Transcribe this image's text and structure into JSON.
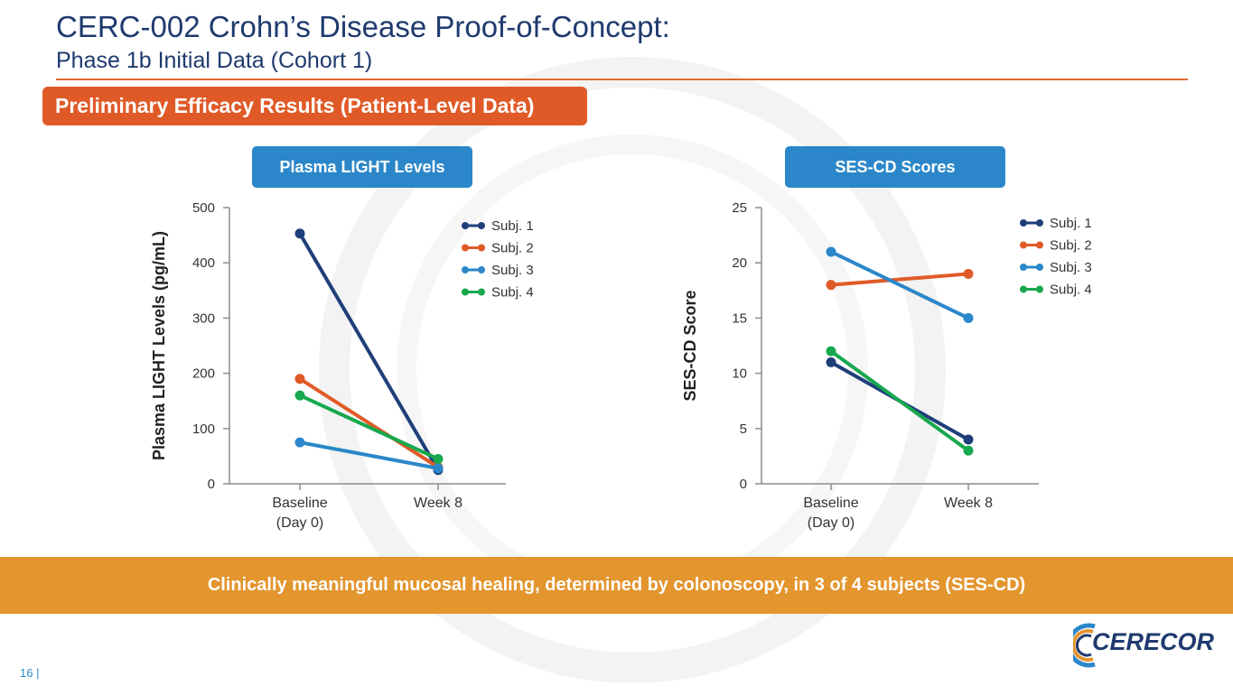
{
  "header": {
    "title": "CERC-002 Crohn’s Disease Proof-of-Concept:",
    "subtitle": "Phase 1b Initial Data (Cohort 1)"
  },
  "section_banner": "Preliminary Efficacy Results (Patient-Level Data)",
  "footer": {
    "banner": "Clinically meaningful mucosal healing, determined by colonoscopy, in 3 of 4 subjects (SES-CD)",
    "page_number": "16 |",
    "logo_text": "CERECOR"
  },
  "colors": {
    "subj1": "#1f3f7a",
    "subj2": "#e05a28",
    "subj3": "#2b87c9",
    "subj4": "#17a84e"
  },
  "chart_data": [
    {
      "type": "line",
      "title": "Plasma LIGHT Levels",
      "xlabel": "",
      "ylabel": "Plasma LIGHT Levels (pg/mL)",
      "categories": [
        [
          "Baseline",
          "(Day 0)"
        ],
        [
          "Week 8"
        ]
      ],
      "ylim": [
        0,
        500
      ],
      "yticks": [
        0,
        100,
        200,
        300,
        400,
        500
      ],
      "series": [
        {
          "name": "Subj. 1",
          "values": [
            453,
            25
          ]
        },
        {
          "name": "Subj. 2",
          "values": [
            190,
            30
          ]
        },
        {
          "name": "Subj. 3",
          "values": [
            75,
            28
          ]
        },
        {
          "name": "Subj. 4",
          "values": [
            160,
            45
          ]
        }
      ],
      "legend": "top-right"
    },
    {
      "type": "line",
      "title": "SES-CD Scores",
      "xlabel": "",
      "ylabel": "SES-CD Score",
      "categories": [
        [
          "Baseline",
          "(Day 0)"
        ],
        [
          "Week 8"
        ]
      ],
      "ylim": [
        0,
        25
      ],
      "yticks": [
        0,
        5,
        10,
        15,
        20,
        25
      ],
      "series": [
        {
          "name": "Subj. 1",
          "values": [
            11,
            4
          ]
        },
        {
          "name": "Subj. 2",
          "values": [
            18,
            19
          ]
        },
        {
          "name": "Subj. 3",
          "values": [
            21,
            15
          ]
        },
        {
          "name": "Subj. 4",
          "values": [
            12,
            3
          ]
        }
      ],
      "legend": "top-right"
    }
  ]
}
